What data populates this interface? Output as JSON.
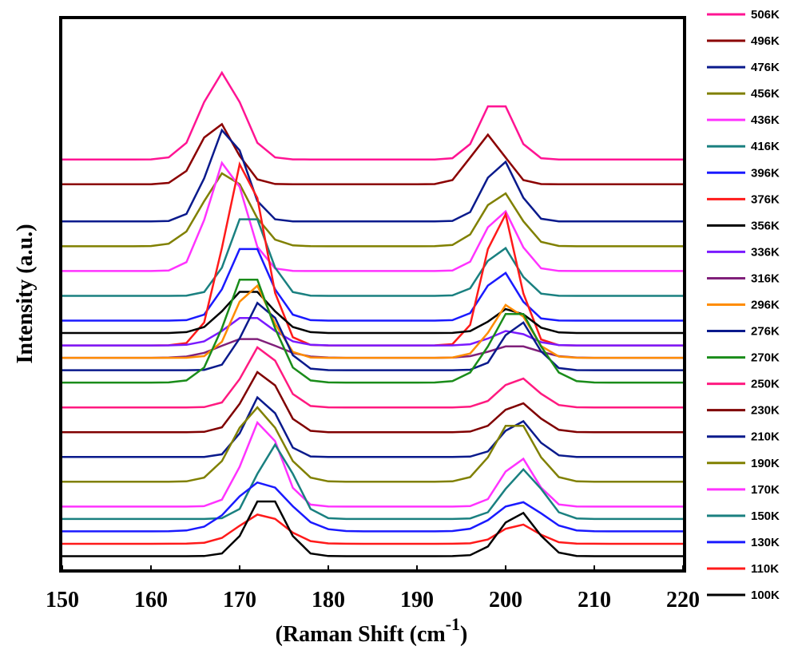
{
  "chart_data": {
    "type": "line",
    "title": "",
    "xlabel_main": "(Raman Shift (cm",
    "xlabel_sup": "-1",
    "xlabel_end": ")",
    "ylabel": "Intensity (a.u.)",
    "xlim": [
      150,
      220
    ],
    "x_ticks": [
      "150",
      "160",
      "170",
      "180",
      "190",
      "200",
      "210",
      "220"
    ],
    "y_ticks_shown": false,
    "grid": false,
    "legend_position": "right",
    "stacked_offsets": true,
    "x": [
      150,
      152,
      154,
      156,
      158,
      160,
      162,
      164,
      166,
      168,
      170,
      172,
      174,
      176,
      178,
      180,
      182,
      184,
      186,
      188,
      190,
      192,
      194,
      196,
      198,
      200,
      202,
      204,
      206,
      208,
      210,
      212,
      214,
      216,
      218,
      220
    ],
    "series": [
      {
        "name": "506K",
        "color": "#ff1493",
        "baseline": 0.9,
        "peak1_pos": 168,
        "peak1_amp": 0.35,
        "peak1_w": 2.2,
        "peak2_pos": 199,
        "peak2_amp": 0.25,
        "peak2_w": 1.8
      },
      {
        "name": "496K",
        "color": "#8b0000",
        "baseline": 0.8,
        "peak1_pos": 167.5,
        "peak1_amp": 0.25,
        "peak1_w": 2.0,
        "peak2_pos": 198,
        "peak2_amp": 0.2,
        "peak2_w": 1.8
      },
      {
        "name": "476K",
        "color": "#0a1a8c",
        "baseline": 0.65,
        "peak1_pos": 168.5,
        "peak1_amp": 0.38,
        "peak1_w": 2.0,
        "peak2_pos": 199.5,
        "peak2_amp": 0.25,
        "peak2_w": 1.8
      },
      {
        "name": "456K",
        "color": "#808000",
        "baseline": 0.55,
        "peak1_pos": 168.5,
        "peak1_amp": 0.3,
        "peak1_w": 2.5,
        "peak2_pos": 199.5,
        "peak2_amp": 0.22,
        "peak2_w": 2.0
      },
      {
        "name": "436K",
        "color": "#ff33ff",
        "baseline": 0.45,
        "peak1_pos": 168.5,
        "peak1_amp": 0.45,
        "peak1_w": 2.0,
        "peak2_pos": 199.5,
        "peak2_amp": 0.25,
        "peak2_w": 1.8
      },
      {
        "name": "416K",
        "color": "#1a8080",
        "baseline": 0.35,
        "peak1_pos": 171,
        "peak1_amp": 0.35,
        "peak1_w": 2.0,
        "peak2_pos": 199.5,
        "peak2_amp": 0.2,
        "peak2_w": 1.8
      },
      {
        "name": "396K",
        "color": "#1a1aff",
        "baseline": 0.25,
        "peak1_pos": 171,
        "peak1_amp": 0.32,
        "peak1_w": 2.2,
        "peak2_pos": 199.5,
        "peak2_amp": 0.2,
        "peak2_w": 1.8
      },
      {
        "name": "376K",
        "color": "#ff1a1a",
        "baseline": 0.15,
        "peak1_pos": 170.5,
        "peak1_amp": 0.75,
        "peak1_w": 2.2,
        "peak2_pos": 199.5,
        "peak2_amp": 0.55,
        "peak2_w": 1.8
      },
      {
        "name": "356K",
        "color": "#000000",
        "baseline": 0.2,
        "peak1_pos": 171,
        "peak1_amp": 0.18,
        "peak1_w": 2.5,
        "peak2_pos": 200.5,
        "peak2_amp": 0.1,
        "peak2_w": 2.0
      },
      {
        "name": "336K",
        "color": "#7a1aff",
        "baseline": 0.15,
        "peak1_pos": 171,
        "peak1_amp": 0.12,
        "peak1_w": 2.5,
        "peak2_pos": 200.5,
        "peak2_amp": 0.06,
        "peak2_w": 2.0
      },
      {
        "name": "316K",
        "color": "#80207a",
        "baseline": 0.1,
        "peak1_pos": 171,
        "peak1_amp": 0.08,
        "peak1_w": 3.0,
        "peak2_pos": 201,
        "peak2_amp": 0.05,
        "peak2_w": 2.5
      },
      {
        "name": "296K",
        "color": "#ff8c00",
        "baseline": 0.1,
        "peak1_pos": 171.5,
        "peak1_amp": 0.3,
        "peak1_w": 2.0,
        "peak2_pos": 200.5,
        "peak2_amp": 0.22,
        "peak2_w": 2.0
      },
      {
        "name": "276K",
        "color": "#0a1a8c",
        "baseline": 0.05,
        "peak1_pos": 172.5,
        "peak1_amp": 0.28,
        "peak1_w": 2.0,
        "peak2_pos": 201.5,
        "peak2_amp": 0.2,
        "peak2_w": 1.8
      },
      {
        "name": "270K",
        "color": "#1a8c1a",
        "baseline": 0.0,
        "peak1_pos": 171,
        "peak1_amp": 0.45,
        "peak1_w": 2.5,
        "peak2_pos": 201,
        "peak2_amp": 0.3,
        "peak2_w": 2.5
      },
      {
        "name": "250K",
        "color": "#ff1a80",
        "baseline": -0.1,
        "peak1_pos": 172.5,
        "peak1_amp": 0.25,
        "peak1_w": 2.0,
        "peak2_pos": 201.5,
        "peak2_amp": 0.12,
        "peak2_w": 2.0
      },
      {
        "name": "230K",
        "color": "#800000",
        "baseline": -0.2,
        "peak1_pos": 172.5,
        "peak1_amp": 0.25,
        "peak1_w": 2.0,
        "peak2_pos": 201.5,
        "peak2_amp": 0.12,
        "peak2_w": 2.0
      },
      {
        "name": "210K",
        "color": "#0a1a8c",
        "baseline": -0.3,
        "peak1_pos": 172.5,
        "peak1_amp": 0.25,
        "peak1_w": 1.8,
        "peak2_pos": 201.5,
        "peak2_amp": 0.15,
        "peak2_w": 1.8
      },
      {
        "name": "190K",
        "color": "#808000",
        "baseline": -0.4,
        "peak1_pos": 172,
        "peak1_amp": 0.3,
        "peak1_w": 2.5,
        "peak2_pos": 201,
        "peak2_amp": 0.25,
        "peak2_w": 2.2
      },
      {
        "name": "170K",
        "color": "#ff33ff",
        "baseline": -0.5,
        "peak1_pos": 172.5,
        "peak1_amp": 0.35,
        "peak1_w": 2.0,
        "peak2_pos": 201.5,
        "peak2_amp": 0.2,
        "peak2_w": 1.8
      },
      {
        "name": "150K",
        "color": "#1a8080",
        "baseline": -0.55,
        "peak1_pos": 174,
        "peak1_amp": 0.3,
        "peak1_w": 2.0,
        "peak2_pos": 202,
        "peak2_amp": 0.2,
        "peak2_w": 2.0
      },
      {
        "name": "130K",
        "color": "#1a1aff",
        "baseline": -0.6,
        "peak1_pos": 172.5,
        "peak1_amp": 0.2,
        "peak1_w": 3.0,
        "peak2_pos": 201.5,
        "peak2_amp": 0.12,
        "peak2_w": 2.5
      },
      {
        "name": "110K",
        "color": "#ff1a1a",
        "baseline": -0.65,
        "peak1_pos": 172.5,
        "peak1_amp": 0.12,
        "peak1_w": 2.5,
        "peak2_pos": 201.5,
        "peak2_amp": 0.08,
        "peak2_w": 2.0
      },
      {
        "name": "100K",
        "color": "#000000",
        "baseline": -0.7,
        "peak1_pos": 173,
        "peak1_amp": 0.25,
        "peak1_w": 2.0,
        "peak2_pos": 201.5,
        "peak2_amp": 0.18,
        "peak2_w": 2.0
      }
    ]
  }
}
